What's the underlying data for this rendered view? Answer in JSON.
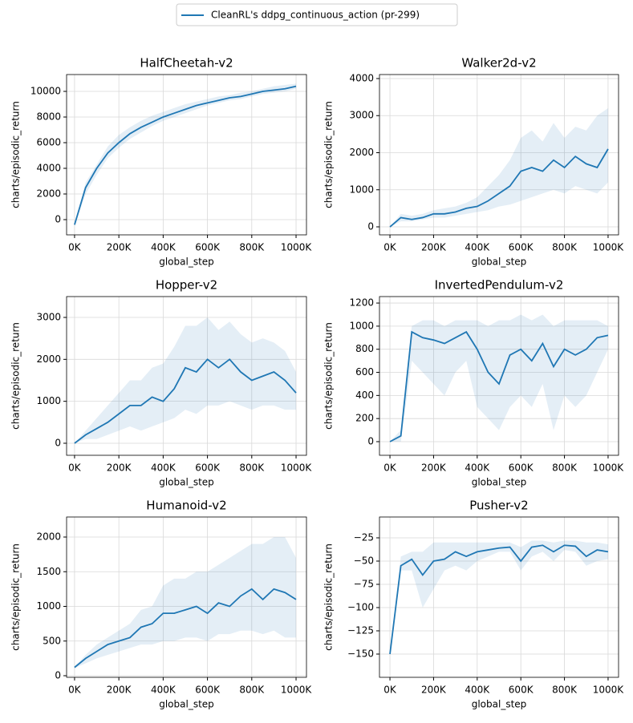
{
  "chart_data": [
    {
      "type": "line",
      "title": "HalfCheetah-v2",
      "x_label": "global_step",
      "y_label": "charts/episodic_return",
      "x": [
        0,
        50000,
        100000,
        150000,
        200000,
        250000,
        300000,
        350000,
        400000,
        450000,
        500000,
        550000,
        600000,
        650000,
        700000,
        750000,
        800000,
        850000,
        900000,
        950000,
        1000000
      ],
      "series": [
        {
          "name": "CleanRL's ddpg_continuous_action (pr-299)",
          "color": "#1f77b4",
          "values": [
            -400,
            2500,
            4000,
            5200,
            6000,
            6700,
            7200,
            7600,
            8000,
            8300,
            8600,
            8900,
            9100,
            9300,
            9500,
            9600,
            9800,
            10000,
            10100,
            10200,
            10400
          ],
          "lower": [
            -500,
            2000,
            3500,
            4800,
            5600,
            6300,
            6800,
            7300,
            7700,
            8000,
            8300,
            8600,
            8900,
            9100,
            9300,
            9400,
            9600,
            9800,
            9900,
            10000,
            10200
          ],
          "upper": [
            -300,
            2900,
            4300,
            5700,
            6600,
            7200,
            7700,
            8100,
            8400,
            8700,
            9000,
            9200,
            9400,
            9600,
            9700,
            9900,
            10000,
            10200,
            10400,
            10500,
            10600
          ]
        }
      ],
      "xlim": [
        -36000,
        1047000
      ],
      "xticks": [
        {
          "value": 0,
          "label": "0K"
        },
        {
          "value": 200000,
          "label": "200K"
        },
        {
          "value": 400000,
          "label": "400K"
        },
        {
          "value": 600000,
          "label": "600K"
        },
        {
          "value": 800000,
          "label": "800K"
        },
        {
          "value": 1000000,
          "label": "1000K"
        }
      ],
      "ylim": [
        -1188,
        11312
      ],
      "yticks": [
        0,
        2000,
        4000,
        6000,
        8000,
        10000
      ],
      "grid": true
    },
    {
      "type": "line",
      "title": "Walker2d-v2",
      "x_label": "global_step",
      "y_label": "charts/episodic_return",
      "x": [
        0,
        50000,
        100000,
        150000,
        200000,
        250000,
        300000,
        350000,
        400000,
        450000,
        500000,
        550000,
        600000,
        650000,
        700000,
        750000,
        800000,
        850000,
        900000,
        950000,
        1000000
      ],
      "series": [
        {
          "color": "#1f77b4",
          "values": [
            0,
            250,
            200,
            250,
            350,
            350,
            400,
            500,
            550,
            700,
            900,
            1100,
            1500,
            1600,
            1500,
            1800,
            1600,
            1900,
            1700,
            1600,
            2100
          ],
          "lower": [
            0,
            150,
            150,
            200,
            250,
            250,
            300,
            350,
            400,
            450,
            550,
            600,
            700,
            800,
            900,
            1000,
            900,
            1100,
            1000,
            900,
            1200
          ],
          "upper": [
            0,
            350,
            300,
            350,
            450,
            500,
            550,
            650,
            800,
            1100,
            1400,
            1800,
            2400,
            2600,
            2300,
            2800,
            2400,
            2700,
            2600,
            3000,
            3200
          ]
        }
      ],
      "xlim": [
        -48000,
        1048000
      ],
      "xticks": [
        {
          "value": 0,
          "label": "0K"
        },
        {
          "value": 200000,
          "label": "200K"
        },
        {
          "value": 400000,
          "label": "400K"
        },
        {
          "value": 600000,
          "label": "600K"
        },
        {
          "value": 800000,
          "label": "800K"
        },
        {
          "value": 1000000,
          "label": "1000K"
        }
      ],
      "ylim": [
        -216,
        4108
      ],
      "yticks": [
        0,
        1000,
        2000,
        3000,
        4000
      ],
      "grid": true
    },
    {
      "type": "line",
      "title": "Hopper-v2",
      "x_label": "global_step",
      "y_label": "charts/episodic_return",
      "x": [
        0,
        50000,
        100000,
        150000,
        200000,
        250000,
        300000,
        350000,
        400000,
        450000,
        500000,
        550000,
        600000,
        650000,
        700000,
        750000,
        800000,
        850000,
        900000,
        950000,
        1000000
      ],
      "series": [
        {
          "color": "#1f77b4",
          "values": [
            0,
            200,
            350,
            500,
            700,
            900,
            900,
            1100,
            1000,
            1300,
            1800,
            1700,
            2000,
            1800,
            2000,
            1700,
            1500,
            1600,
            1700,
            1500,
            1200
          ],
          "lower": [
            0,
            100,
            100,
            200,
            300,
            400,
            300,
            400,
            500,
            600,
            800,
            700,
            900,
            900,
            1000,
            900,
            800,
            900,
            900,
            800,
            800
          ],
          "upper": [
            0,
            300,
            600,
            900,
            1200,
            1500,
            1500,
            1800,
            1900,
            2300,
            2800,
            2800,
            3000,
            2700,
            2900,
            2600,
            2400,
            2500,
            2400,
            2200,
            1700
          ]
        }
      ],
      "xlim": [
        -36000,
        1047000
      ],
      "xticks": [
        {
          "value": 0,
          "label": "0K"
        },
        {
          "value": 200000,
          "label": "200K"
        },
        {
          "value": 400000,
          "label": "400K"
        },
        {
          "value": 600000,
          "label": "600K"
        },
        {
          "value": 800000,
          "label": "800K"
        },
        {
          "value": 1000000,
          "label": "1000K"
        }
      ],
      "ylim": [
        -287,
        3497
      ],
      "yticks": [
        0,
        1000,
        2000,
        3000
      ],
      "grid": true
    },
    {
      "type": "line",
      "title": "InvertedPendulum-v2",
      "x_label": "global_step",
      "y_label": "charts/episodic_return",
      "x": [
        0,
        50000,
        100000,
        150000,
        200000,
        250000,
        300000,
        350000,
        400000,
        450000,
        500000,
        550000,
        600000,
        650000,
        700000,
        750000,
        800000,
        850000,
        900000,
        950000,
        1000000
      ],
      "series": [
        {
          "color": "#1f77b4",
          "values": [
            0,
            50,
            950,
            900,
            880,
            850,
            900,
            950,
            800,
            600,
            500,
            750,
            800,
            700,
            850,
            650,
            800,
            750,
            800,
            900,
            920
          ],
          "lower": [
            0,
            0,
            700,
            600,
            500,
            400,
            600,
            700,
            300,
            200,
            100,
            300,
            400,
            300,
            500,
            100,
            400,
            300,
            400,
            600,
            800
          ],
          "upper": [
            0,
            100,
            1000,
            1050,
            1050,
            1000,
            1050,
            1050,
            1050,
            1000,
            1050,
            1050,
            1100,
            1050,
            1100,
            1000,
            1050,
            1050,
            1050,
            1050,
            1000
          ]
        }
      ],
      "xlim": [
        -48000,
        1048000
      ],
      "xticks": [
        {
          "value": 0,
          "label": "0K"
        },
        {
          "value": 200000,
          "label": "200K"
        },
        {
          "value": 400000,
          "label": "400K"
        },
        {
          "value": 600000,
          "label": "600K"
        },
        {
          "value": 800000,
          "label": "800K"
        },
        {
          "value": 1000000,
          "label": "1000K"
        }
      ],
      "ylim": [
        -118,
        1256
      ],
      "yticks": [
        0,
        200,
        400,
        600,
        800,
        1000,
        1200
      ],
      "grid": true
    },
    {
      "type": "line",
      "title": "Humanoid-v2",
      "x_label": "global_step",
      "y_label": "charts/episodic_return",
      "x": [
        0,
        50000,
        100000,
        150000,
        200000,
        250000,
        300000,
        350000,
        400000,
        450000,
        500000,
        550000,
        600000,
        650000,
        700000,
        750000,
        800000,
        850000,
        900000,
        950000,
        1000000
      ],
      "series": [
        {
          "color": "#1f77b4",
          "values": [
            120,
            250,
            350,
            450,
            500,
            550,
            700,
            750,
            900,
            900,
            950,
            1000,
            900,
            1050,
            1000,
            1150,
            1250,
            1100,
            1250,
            1200,
            1100
          ],
          "lower": [
            110,
            180,
            250,
            300,
            350,
            400,
            450,
            450,
            500,
            500,
            550,
            550,
            500,
            600,
            600,
            650,
            650,
            600,
            650,
            550,
            550
          ],
          "upper": [
            130,
            300,
            450,
            550,
            650,
            750,
            950,
            1000,
            1300,
            1400,
            1400,
            1500,
            1500,
            1600,
            1700,
            1800,
            1900,
            1900,
            2000,
            2000,
            1700
          ]
        }
      ],
      "xlim": [
        -36000,
        1047000
      ],
      "xticks": [
        {
          "value": 0,
          "label": "0K"
        },
        {
          "value": 200000,
          "label": "200K"
        },
        {
          "value": 400000,
          "label": "400K"
        },
        {
          "value": 600000,
          "label": "600K"
        },
        {
          "value": 800000,
          "label": "800K"
        },
        {
          "value": 1000000,
          "label": "1000K"
        }
      ],
      "ylim": [
        -23,
        2289
      ],
      "yticks": [
        0,
        500,
        1000,
        1500,
        2000
      ],
      "grid": true
    },
    {
      "type": "line",
      "title": "Pusher-v2",
      "x_label": "global_step",
      "y_label": "charts/episodic_return",
      "x": [
        0,
        50000,
        100000,
        150000,
        200000,
        250000,
        300000,
        350000,
        400000,
        450000,
        500000,
        550000,
        600000,
        650000,
        700000,
        750000,
        800000,
        850000,
        900000,
        950000,
        1000000
      ],
      "series": [
        {
          "color": "#1f77b4",
          "values": [
            -150,
            -55,
            -48,
            -65,
            -50,
            -48,
            -40,
            -45,
            -40,
            -38,
            -36,
            -35,
            -50,
            -35,
            -33,
            -40,
            -33,
            -34,
            -45,
            -38,
            -40
          ],
          "lower": [
            -150,
            -60,
            -60,
            -100,
            -80,
            -60,
            -55,
            -60,
            -50,
            -45,
            -40,
            -40,
            -60,
            -45,
            -40,
            -50,
            -38,
            -40,
            -55,
            -50,
            -48
          ],
          "upper": [
            -150,
            -45,
            -40,
            -40,
            -30,
            -30,
            -30,
            -30,
            -30,
            -30,
            -30,
            -30,
            -35,
            -28,
            -28,
            -30,
            -28,
            -28,
            -30,
            -30,
            -32
          ]
        }
      ],
      "xlim": [
        -48000,
        1048000
      ],
      "xticks": [
        {
          "value": 0,
          "label": "0K"
        },
        {
          "value": 200000,
          "label": "200K"
        },
        {
          "value": 400000,
          "label": "400K"
        },
        {
          "value": 600000,
          "label": "600K"
        },
        {
          "value": 800000,
          "label": "800K"
        },
        {
          "value": 1000000,
          "label": "1000K"
        }
      ],
      "ylim": [
        -175,
        -2.6
      ],
      "yticks": [
        {
          "value": -150,
          "label": "−150"
        },
        {
          "value": -125,
          "label": "−125"
        },
        {
          "value": -100,
          "label": "−100"
        },
        {
          "value": -75,
          "label": "−75"
        },
        {
          "value": -50,
          "label": "−50"
        },
        {
          "value": -25,
          "label": "−25"
        }
      ],
      "grid": true
    }
  ]
}
